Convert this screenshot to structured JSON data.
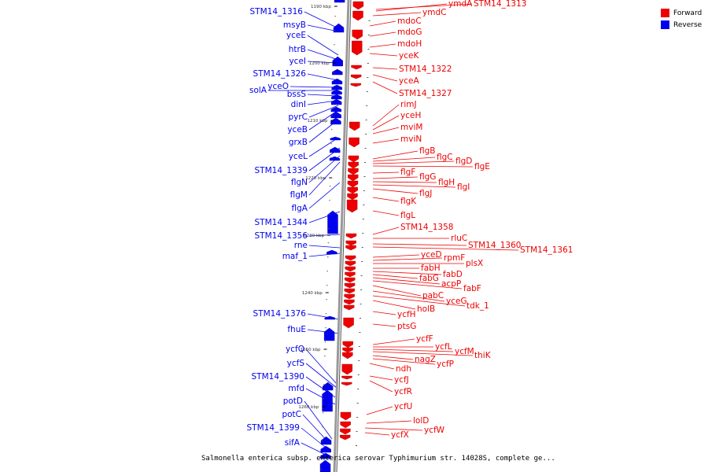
{
  "caption": "Salmonella enterica subsp. enterica serovar Typhimurium str. 14028S, complete ge...",
  "legend": [
    {
      "label": "Forward",
      "color": "#ee0000"
    },
    {
      "label": "Reverse",
      "color": "#0000ee"
    }
  ],
  "colors": {
    "forward": "#ee0000",
    "reverse": "#0000ee",
    "axis": "#999999"
  },
  "ticks": [
    "1190 kbp",
    "1200 kbp",
    "1210 kbp",
    "1220 kbp",
    "1230 kbp",
    "1240 kbp",
    "1250 kbp",
    "1260 kbp"
  ],
  "reverse_genes": [
    "STM14_1316",
    "msyB",
    "yceE",
    "htrB",
    "yceI",
    "STM14_1326",
    "yceO",
    "solA",
    "bssS",
    "dinI",
    "pyrC",
    "yceB",
    "grxB",
    "yceL",
    "STM14_1339",
    "flgN",
    "flgM",
    "flgA",
    "STM14_1344",
    "STM14_1356",
    "rne",
    "maf_1",
    "STM14_1376",
    "fhuE",
    "ycfQ",
    "ycfS",
    "STM14_1390",
    "mfd",
    "potD",
    "potC",
    "STM14_1399",
    "sifA"
  ],
  "forward_genes": [
    "ymdA",
    "STM14_1313",
    "ymdC",
    "mdoC",
    "mdoG",
    "mdoH",
    "yceK",
    "STM14_1322",
    "yceA",
    "STM14_1327",
    "rimJ",
    "yceH",
    "mviM",
    "mviN",
    "flgB",
    "flgC",
    "flgD",
    "flgE",
    "flgF",
    "flgG",
    "flgH",
    "flgI",
    "flgJ",
    "flgK",
    "flgL",
    "STM14_1358",
    "rluC",
    "STM14_1360",
    "STM14_1361",
    "yceD",
    "rpmF",
    "plsX",
    "fabH",
    "fabD",
    "fabG",
    "acpP",
    "fabF",
    "pabC",
    "yceG",
    "tdk_1",
    "holB",
    "ycfH",
    "ptsG",
    "ycfF",
    "ycfL",
    "ycfM",
    "thiK",
    "nagZ",
    "ycfP",
    "ndh",
    "ycfJ",
    "ycfR",
    "ycfU",
    "lolD",
    "ycfW",
    "ycfX"
  ]
}
